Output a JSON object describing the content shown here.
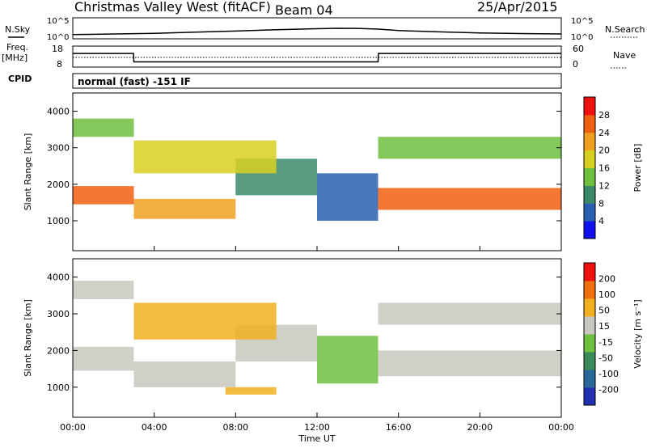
{
  "header": {
    "station": "Christmas Valley West (fitACF)",
    "beam": "Beam 04",
    "date": "25/Apr/2015"
  },
  "side_labels": {
    "nsky": "N.Sky",
    "nsearch": "N.Search",
    "freq": "Freq.",
    "freq_unit": "[MHz]",
    "nave": "Nave",
    "cpid": "CPID",
    "cpid_value": "normal (fast) -151 IF",
    "noise_top": "10^5",
    "noise_bottom": "10^0",
    "freq_ticks": [
      "18",
      "8"
    ],
    "nave_ticks": [
      "60",
      "0"
    ]
  },
  "chart_data": [
    {
      "type": "line",
      "panel": "noise",
      "x": [
        "00:00",
        "02:00",
        "04:00",
        "06:00",
        "08:00",
        "10:00",
        "12:00",
        "13:00",
        "14:00",
        "15:00",
        "16:00",
        "18:00",
        "20:00",
        "22:00",
        "24:00"
      ],
      "series": [
        {
          "name": "N.Sky",
          "values": [
            10,
            14,
            20,
            40,
            70,
            140,
            250,
            320,
            300,
            200,
            90,
            45,
            25,
            18,
            14
          ]
        }
      ],
      "ylim": [
        1,
        100000
      ],
      "log_y": true
    },
    {
      "type": "line",
      "panel": "freq-nave",
      "x": [
        "00:00",
        "02:59",
        "03:00",
        "15:00",
        "15:01",
        "24:00"
      ],
      "series": [
        {
          "name": "Freq.",
          "values": [
            14.5,
            14.5,
            10.5,
            10.5,
            14.5,
            14.5
          ]
        }
      ],
      "ylim": [
        8,
        18
      ],
      "ylim_right": [
        0,
        60
      ]
    },
    {
      "type": "heatmap",
      "panel": "power",
      "ylabel": "Slant Range [km]",
      "yticks": [
        "1000",
        "2000",
        "3000",
        "4000"
      ],
      "xticks": [
        "00:00",
        "04:00",
        "08:00",
        "12:00",
        "16:00",
        "20:00",
        "00:00"
      ],
      "ylim": [
        180,
        4500
      ],
      "colorbar_label": "Power [dB]",
      "colorbar_ticks": [
        "28",
        "24",
        "20",
        "16",
        "12",
        "8",
        "4"
      ],
      "colors": [
        "#1010ee",
        "#2a5fb0",
        "#3a8a6a",
        "#70c040",
        "#d8d020",
        "#f0a020",
        "#f06010",
        "#f01010"
      ],
      "bands": [
        {
          "t0": 0.0,
          "t1": 3.0,
          "r0": 1450,
          "r1": 1950,
          "level": 6
        },
        {
          "t0": 3.0,
          "t1": 8.0,
          "r0": 1050,
          "r1": 1600,
          "level": 5
        },
        {
          "t0": 8.0,
          "t1": 12.0,
          "r0": 1700,
          "r1": 2700,
          "level": 2
        },
        {
          "t0": 12.0,
          "t1": 15.0,
          "r0": 1000,
          "r1": 2300,
          "level": 1
        },
        {
          "t0": 15.0,
          "t1": 24.0,
          "r0": 1300,
          "r1": 1900,
          "level": 6
        },
        {
          "t0": 0.0,
          "t1": 3.0,
          "r0": 3300,
          "r1": 3800,
          "level": 3
        },
        {
          "t0": 3.0,
          "t1": 10.0,
          "r0": 2300,
          "r1": 3200,
          "level": 4
        },
        {
          "t0": 15.0,
          "t1": 24.0,
          "r0": 2700,
          "r1": 3300,
          "level": 3
        }
      ]
    },
    {
      "type": "heatmap",
      "panel": "velocity",
      "ylabel": "Slant Range [km]",
      "xlabel": "Time UT",
      "yticks": [
        "1000",
        "2000",
        "3000",
        "4000"
      ],
      "xticks": [
        "00:00",
        "04:00",
        "08:00",
        "12:00",
        "16:00",
        "20:00",
        "00:00"
      ],
      "ylim": [
        180,
        4500
      ],
      "colorbar_label": "Velocity [m s⁻¹]",
      "colorbar_ticks": [
        "200",
        "100",
        "50",
        "15",
        "-15",
        "-50",
        "-100",
        "-200"
      ],
      "colors": [
        "#2030b0",
        "#2a6a9a",
        "#3a8a5a",
        "#70c040",
        "#c8c8c0",
        "#f0b020",
        "#f07010",
        "#f01010"
      ],
      "bands": [
        {
          "t0": 0.0,
          "t1": 3.0,
          "r0": 1450,
          "r1": 2100,
          "level": 4
        },
        {
          "t0": 3.0,
          "t1": 8.0,
          "r0": 1000,
          "r1": 1700,
          "level": 4
        },
        {
          "t0": 8.0,
          "t1": 12.0,
          "r0": 1700,
          "r1": 2700,
          "level": 4
        },
        {
          "t0": 12.0,
          "t1": 15.0,
          "r0": 1100,
          "r1": 2400,
          "level": 3
        },
        {
          "t0": 15.0,
          "t1": 24.0,
          "r0": 1300,
          "r1": 2000,
          "level": 4
        },
        {
          "t0": 0.0,
          "t1": 3.0,
          "r0": 3400,
          "r1": 3900,
          "level": 4
        },
        {
          "t0": 3.0,
          "t1": 10.0,
          "r0": 2300,
          "r1": 3300,
          "level": 5
        },
        {
          "t0": 15.0,
          "t1": 24.0,
          "r0": 2700,
          "r1": 3300,
          "level": 4
        },
        {
          "t0": 7.5,
          "t1": 10.0,
          "r0": 800,
          "r1": 1000,
          "level": 5
        }
      ]
    }
  ]
}
